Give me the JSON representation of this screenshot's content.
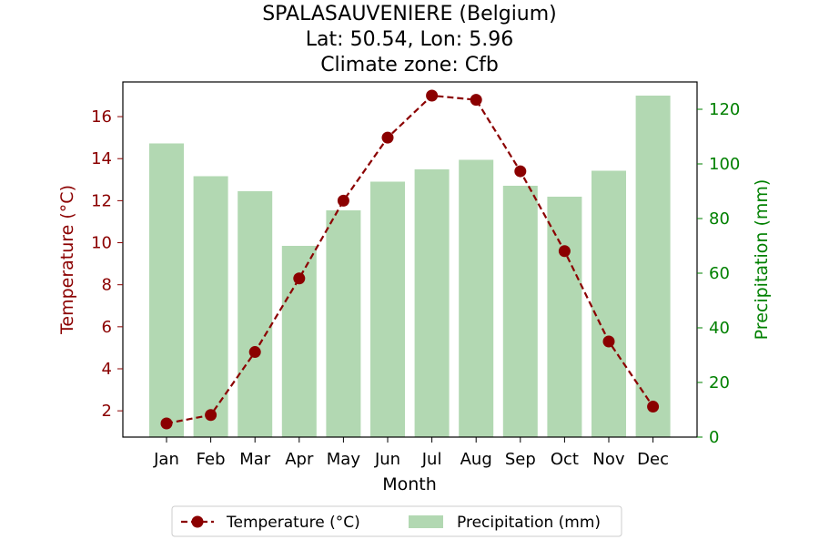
{
  "chart_data": {
    "type": "bar+line",
    "title_lines": [
      "SPALASAUVENIERE (Belgium)",
      "Lat: 50.54, Lon: 5.96",
      "Climate zone: Cfb"
    ],
    "xlabel": "Month",
    "ylabel_left": "Temperature (°C)",
    "ylabel_right": "Precipitation (mm)",
    "categories": [
      "Jan",
      "Feb",
      "Mar",
      "Apr",
      "May",
      "Jun",
      "Jul",
      "Aug",
      "Sep",
      "Oct",
      "Nov",
      "Dec"
    ],
    "series": [
      {
        "name": "Temperature (°C)",
        "type": "line",
        "axis": "left",
        "color": "#8b0000",
        "values": [
          1.4,
          1.8,
          4.8,
          8.3,
          12.0,
          15.0,
          17.0,
          16.8,
          13.4,
          9.6,
          5.3,
          2.2
        ]
      },
      {
        "name": "Precipitation (mm)",
        "type": "bar",
        "axis": "right",
        "color": "#b2d8b2",
        "values": [
          107.5,
          95.5,
          90,
          70,
          83,
          93.5,
          98,
          101.5,
          92,
          88,
          97.5,
          125
        ]
      }
    ],
    "ylim_left": [
      0.75,
      17.65
    ],
    "ylim_right": [
      0,
      130
    ],
    "yticks_left": [
      2,
      4,
      6,
      8,
      10,
      12,
      14,
      16
    ],
    "yticks_right": [
      0,
      20,
      40,
      60,
      80,
      100,
      120
    ],
    "left_axis_color": "#8b0000",
    "right_axis_color": "#008000",
    "grid": false,
    "legend_position": "bottom-center"
  }
}
